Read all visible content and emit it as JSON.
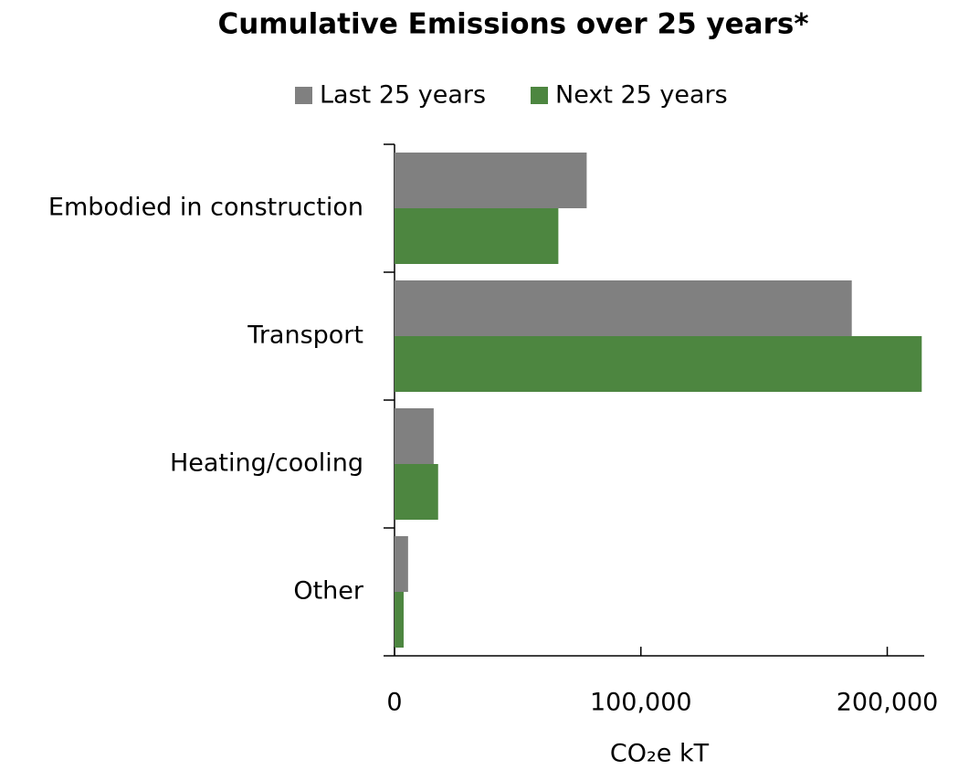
{
  "chart_data": {
    "type": "hbar",
    "title": "Cumulative Emissions over 25 years*",
    "categories": [
      "Embodied in construction",
      "Transport",
      "Heating/cooling",
      "Other"
    ],
    "series": [
      {
        "name": "Last 25 years",
        "color": "#808080",
        "values": [
          78000,
          185600,
          15900,
          5500
        ]
      },
      {
        "name": "Next 25 years",
        "color": "#4d8640",
        "values": [
          66500,
          214000,
          17700,
          3700
        ]
      }
    ],
    "xlabel": "CO₂e kT",
    "xlim": [
      0,
      215000
    ],
    "xticks": [
      0,
      {
        "value": 100000,
        "label": "100,000"
      },
      {
        "value": 200000,
        "label": "200,000"
      }
    ],
    "legend": "top"
  }
}
